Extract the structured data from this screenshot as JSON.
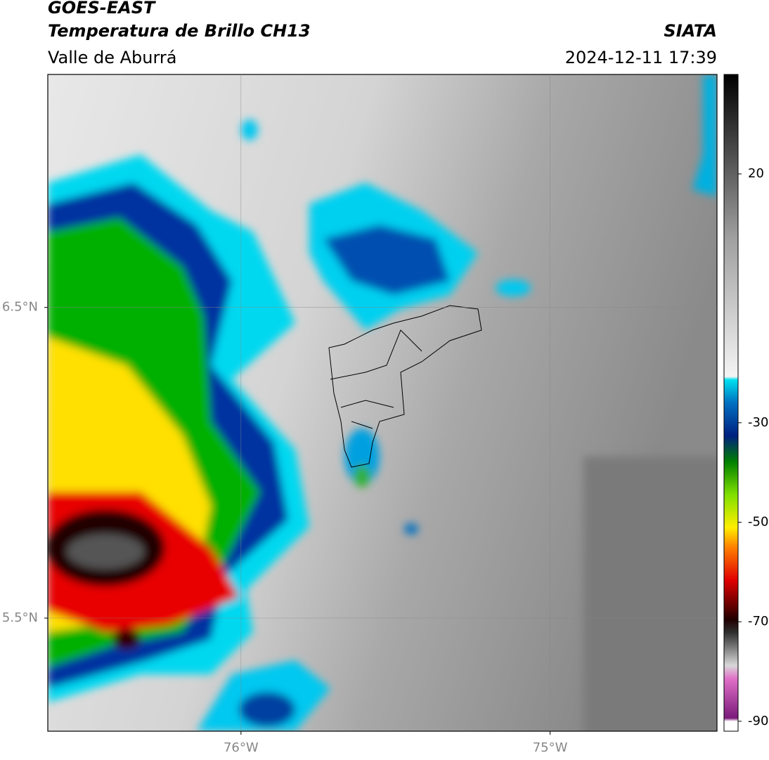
{
  "header": {
    "title": "GOES-EAST",
    "subtitle": "Temperatura de Brillo CH13",
    "region": "Valle de Aburrá",
    "source": "SIATA",
    "datetime": "2024-12-11 17:39"
  },
  "map": {
    "xlim": [
      -76.625,
      -74.46
    ],
    "ylim": [
      5.136,
      7.25
    ],
    "xticks": [
      {
        "value": -76,
        "label": "76°W"
      },
      {
        "value": -75,
        "label": "75°W"
      }
    ],
    "yticks": [
      {
        "value": 6.5,
        "label": "6.5°N"
      },
      {
        "value": 5.5,
        "label": "5.5°N"
      }
    ],
    "grid": true
  },
  "colorbar": {
    "lim": [
      -92,
      40
    ],
    "ticks": [
      20,
      -30,
      -50,
      -70,
      -90
    ]
  }
}
